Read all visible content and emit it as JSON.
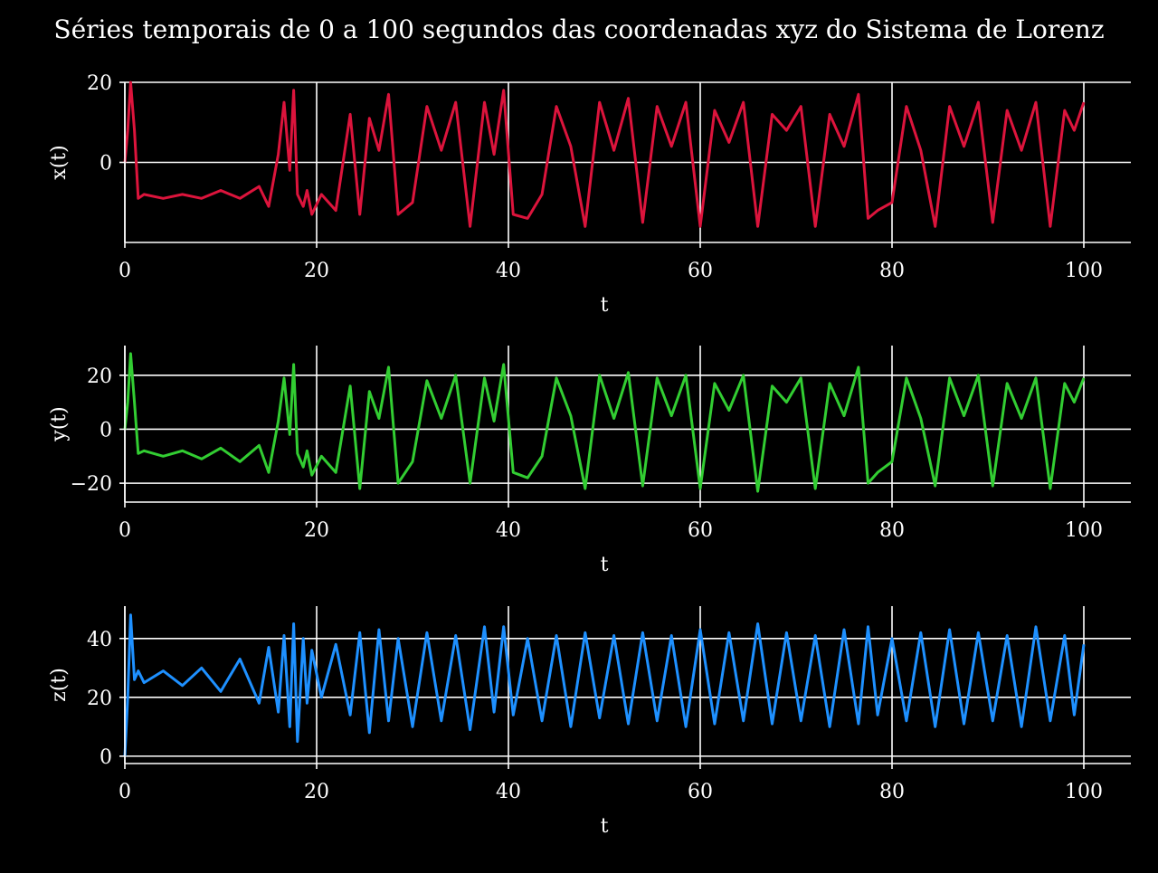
{
  "title": "Séries temporais de 0 a 100 segundos das coordenadas xyz do Sistema de Lorenz",
  "colors": {
    "background": "#000000",
    "foreground": "#ffffff",
    "grid": "#ffffff"
  },
  "chart_data": [
    {
      "type": "line",
      "xlabel": "t",
      "ylabel": "x(t)",
      "xlim": [
        0,
        100
      ],
      "ylim": [
        -20,
        20
      ],
      "xticks": [
        0,
        20,
        40,
        60,
        80,
        100
      ],
      "yticks": [
        0,
        20
      ],
      "ytick_labels": [
        "0",
        "20"
      ],
      "grid": true,
      "series": [
        {
          "color": "#dc143c",
          "x": [
            0,
            0.3,
            0.6,
            1.0,
            1.4,
            2.0,
            4.0,
            6.0,
            8.0,
            10.0,
            12.0,
            14.0,
            15.0,
            16.0,
            16.6,
            17.2,
            17.6,
            18.0,
            18.6,
            19.0,
            19.5,
            20.5,
            22.0,
            23.5,
            24.5,
            25.5,
            26.5,
            27.5,
            28.5,
            30.0,
            31.5,
            33.0,
            34.5,
            36.0,
            37.5,
            38.5,
            39.5,
            40.5,
            42.0,
            43.5,
            45.0,
            46.5,
            48.0,
            49.5,
            51.0,
            52.5,
            54.0,
            55.5,
            57.0,
            58.5,
            60.0,
            61.5,
            63.0,
            64.5,
            66.0,
            67.5,
            69.0,
            70.5,
            72.0,
            73.5,
            75.0,
            76.5,
            77.5,
            78.5,
            80.0,
            81.5,
            83.0,
            84.5,
            86.0,
            87.5,
            89.0,
            90.5,
            92.0,
            93.5,
            95.0,
            96.5,
            98.0,
            99.0,
            100.0
          ],
          "values": [
            0,
            8,
            20,
            8,
            -9,
            -8,
            -9,
            -8,
            -9,
            -7,
            -9,
            -6,
            -11,
            2,
            15,
            -2,
            18,
            -8,
            -11,
            -7,
            -13,
            -8,
            -12,
            12,
            -13,
            11,
            3,
            17,
            -13,
            -10,
            14,
            3,
            15,
            -16,
            15,
            2,
            18,
            -13,
            -14,
            -8,
            14,
            4,
            -16,
            15,
            3,
            16,
            -15,
            14,
            4,
            15,
            -16,
            13,
            5,
            15,
            -16,
            12,
            8,
            14,
            -16,
            12,
            4,
            17,
            -14,
            -12,
            -10,
            14,
            3,
            -16,
            14,
            4,
            15,
            -15,
            13,
            3,
            15,
            -16,
            13,
            8,
            15
          ]
        }
      ]
    },
    {
      "type": "line",
      "xlabel": "t",
      "ylabel": "y(t)",
      "xlim": [
        0,
        100
      ],
      "ylim": [
        -27,
        31
      ],
      "xticks": [
        0,
        20,
        40,
        60,
        80,
        100
      ],
      "yticks": [
        -20,
        0,
        20
      ],
      "ytick_labels": [
        "−20",
        "0",
        "20"
      ],
      "grid": true,
      "series": [
        {
          "color": "#32cd32",
          "x": [
            0,
            0.3,
            0.6,
            1.0,
            1.4,
            2.0,
            4.0,
            6.0,
            8.0,
            10.0,
            12.0,
            14.0,
            15.0,
            16.0,
            16.6,
            17.2,
            17.6,
            18.0,
            18.6,
            19.0,
            19.5,
            20.5,
            22.0,
            23.5,
            24.5,
            25.5,
            26.5,
            27.5,
            28.5,
            30.0,
            31.5,
            33.0,
            34.5,
            36.0,
            37.5,
            38.5,
            39.5,
            40.5,
            42.0,
            43.5,
            45.0,
            46.5,
            48.0,
            49.5,
            51.0,
            52.5,
            54.0,
            55.5,
            57.0,
            58.5,
            60.0,
            61.5,
            63.0,
            64.5,
            66.0,
            67.5,
            69.0,
            70.5,
            72.0,
            73.5,
            75.0,
            76.5,
            77.5,
            78.5,
            80.0,
            81.5,
            83.0,
            84.5,
            86.0,
            87.5,
            89.0,
            90.5,
            92.0,
            93.5,
            95.0,
            96.5,
            98.0,
            99.0,
            100.0
          ],
          "values": [
            0,
            10,
            28,
            10,
            -9,
            -8,
            -10,
            -8,
            -11,
            -7,
            -12,
            -6,
            -16,
            3,
            19,
            -2,
            24,
            -9,
            -14,
            -8,
            -17,
            -10,
            -16,
            16,
            -22,
            14,
            4,
            23,
            -20,
            -12,
            18,
            4,
            20,
            -20,
            19,
            3,
            24,
            -16,
            -18,
            -10,
            19,
            5,
            -22,
            20,
            4,
            21,
            -21,
            19,
            5,
            20,
            -22,
            17,
            7,
            20,
            -23,
            16,
            10,
            19,
            -22,
            17,
            5,
            23,
            -20,
            -16,
            -12,
            19,
            4,
            -21,
            19,
            5,
            20,
            -21,
            17,
            4,
            19,
            -22,
            17,
            10,
            19
          ]
        }
      ]
    },
    {
      "type": "line",
      "xlabel": "t",
      "ylabel": "z(t)",
      "xlim": [
        0,
        100
      ],
      "ylim": [
        -2.5,
        51
      ],
      "xticks": [
        0,
        20,
        40,
        60,
        80,
        100
      ],
      "yticks": [
        0,
        20,
        40
      ],
      "ytick_labels": [
        "0",
        "20",
        "40"
      ],
      "grid": true,
      "series": [
        {
          "color": "#1e90ff",
          "x": [
            0,
            0.3,
            0.6,
            1.0,
            1.4,
            2.0,
            4.0,
            6.0,
            8.0,
            10.0,
            12.0,
            14.0,
            15.0,
            16.0,
            16.6,
            17.2,
            17.6,
            18.0,
            18.6,
            19.0,
            19.5,
            20.5,
            22.0,
            23.5,
            24.5,
            25.5,
            26.5,
            27.5,
            28.5,
            30.0,
            31.5,
            33.0,
            34.5,
            36.0,
            37.5,
            38.5,
            39.5,
            40.5,
            42.0,
            43.5,
            45.0,
            46.5,
            48.0,
            49.5,
            51.0,
            52.5,
            54.0,
            55.5,
            57.0,
            58.5,
            60.0,
            61.5,
            63.0,
            64.5,
            66.0,
            67.5,
            69.0,
            70.5,
            72.0,
            73.5,
            75.0,
            76.5,
            77.5,
            78.5,
            80.0,
            81.5,
            83.0,
            84.5,
            86.0,
            87.5,
            89.0,
            90.5,
            92.0,
            93.5,
            95.0,
            96.5,
            98.0,
            99.0,
            100.0
          ],
          "values": [
            0,
            20,
            48,
            26,
            29,
            25,
            29,
            24,
            30,
            22,
            33,
            18,
            37,
            15,
            41,
            10,
            45,
            5,
            40,
            18,
            36,
            20,
            38,
            14,
            42,
            8,
            43,
            12,
            40,
            10,
            42,
            12,
            41,
            9,
            44,
            15,
            44,
            14,
            40,
            12,
            41,
            10,
            42,
            13,
            41,
            11,
            42,
            12,
            41,
            10,
            43,
            11,
            42,
            12,
            45,
            11,
            42,
            12,
            41,
            10,
            43,
            11,
            44,
            14,
            40,
            12,
            42,
            10,
            43,
            11,
            42,
            12,
            41,
            10,
            44,
            12,
            41,
            14,
            38
          ]
        }
      ]
    }
  ]
}
